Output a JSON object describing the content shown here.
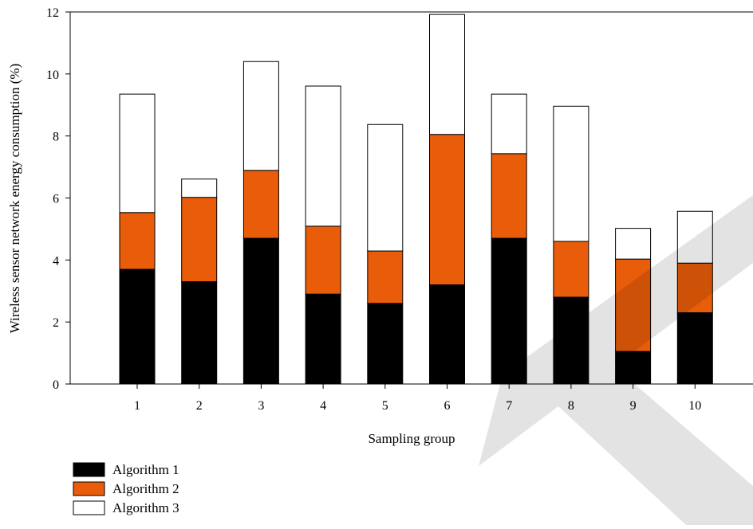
{
  "chart_data": {
    "type": "bar",
    "stacked": true,
    "categories": [
      "1",
      "2",
      "3",
      "4",
      "5",
      "6",
      "7",
      "8",
      "9",
      "10"
    ],
    "series": [
      {
        "name": "Algorithm 1",
        "color": "#000000",
        "values": [
          3.7,
          3.3,
          4.7,
          2.9,
          2.6,
          3.2,
          4.7,
          2.8,
          1.05,
          2.3
        ]
      },
      {
        "name": "Algorithm 2",
        "color": "#e85c0a",
        "values": [
          1.83,
          2.72,
          2.19,
          2.19,
          1.69,
          4.85,
          2.73,
          1.8,
          2.98,
          1.6
        ]
      },
      {
        "name": "Algorithm 3",
        "color": "#ffffff",
        "values": [
          3.82,
          0.59,
          3.51,
          4.52,
          4.08,
          3.87,
          1.92,
          4.36,
          0.99,
          1.67
        ]
      }
    ],
    "xlabel": "Sampling group",
    "ylabel": "Wireless sensor network energy consumption (%)",
    "ylim": [
      0,
      12
    ],
    "yticks": [
      "0",
      "2",
      "4",
      "6",
      "8",
      "10",
      "12"
    ],
    "grid": false,
    "legend_position": "bottom-left"
  }
}
